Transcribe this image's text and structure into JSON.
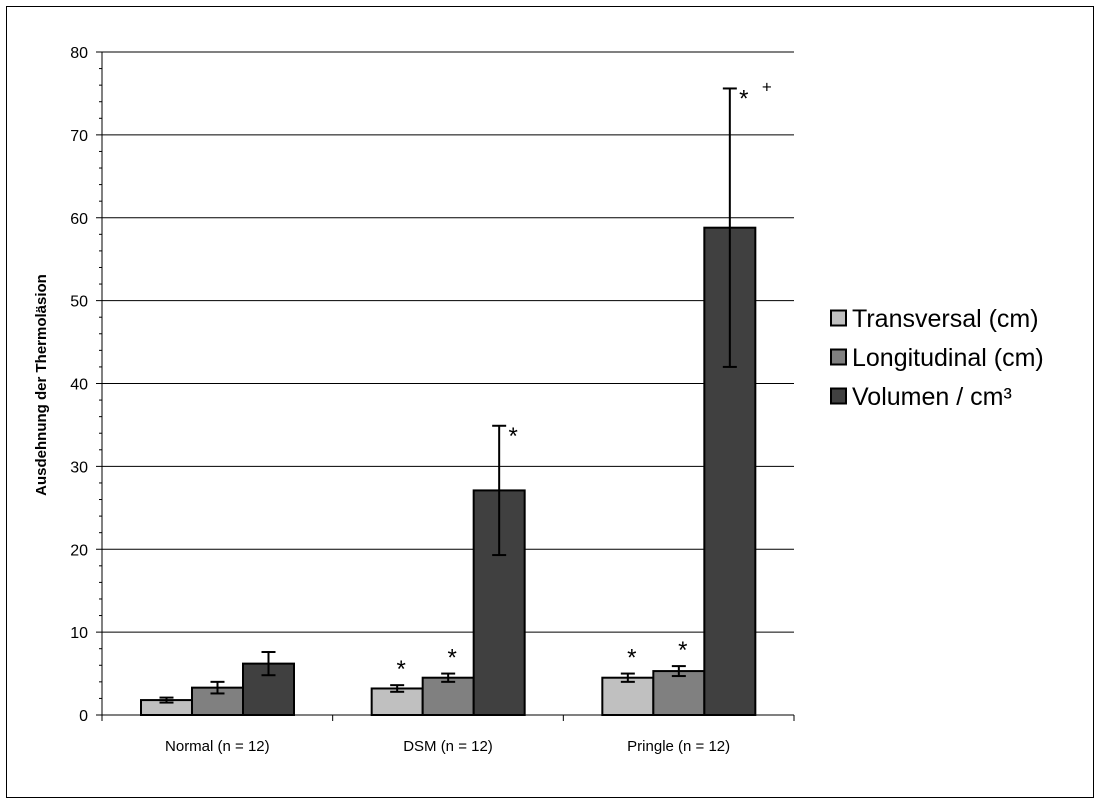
{
  "chart_data": {
    "type": "bar",
    "title": "",
    "xlabel": "",
    "ylabel": "Ausdehnung der Thermoläsion",
    "ylim": [
      0,
      80
    ],
    "yticks": [
      0,
      10,
      20,
      30,
      40,
      50,
      60,
      70,
      80
    ],
    "grid": true,
    "legend_position": "right",
    "categories": [
      "Normal (n = 12)",
      "DSM (n = 12)",
      "Pringle (n = 12)"
    ],
    "series": [
      {
        "name": "Transversal (cm)",
        "color": "#c0c0c0",
        "values": [
          1.8,
          3.2,
          4.5
        ],
        "errors": [
          0.3,
          0.4,
          0.5
        ]
      },
      {
        "name": "Longitudinal (cm)",
        "color": "#808080",
        "values": [
          3.3,
          4.5,
          5.3
        ],
        "errors": [
          0.7,
          0.5,
          0.6
        ]
      },
      {
        "name": "Volumen / cm³",
        "color": "#404040",
        "values": [
          6.2,
          27.1,
          58.8
        ],
        "errors": [
          1.4,
          7.8,
          16.8
        ]
      }
    ],
    "annotations": [
      {
        "category": 1,
        "series": 0,
        "text": "*"
      },
      {
        "category": 1,
        "series": 1,
        "text": "*"
      },
      {
        "category": 1,
        "series": 2,
        "text": "*"
      },
      {
        "category": 2,
        "series": 0,
        "text": "*"
      },
      {
        "category": 2,
        "series": 1,
        "text": "*"
      },
      {
        "category": 2,
        "series": 2,
        "text": "*",
        "extra": "+"
      }
    ]
  }
}
